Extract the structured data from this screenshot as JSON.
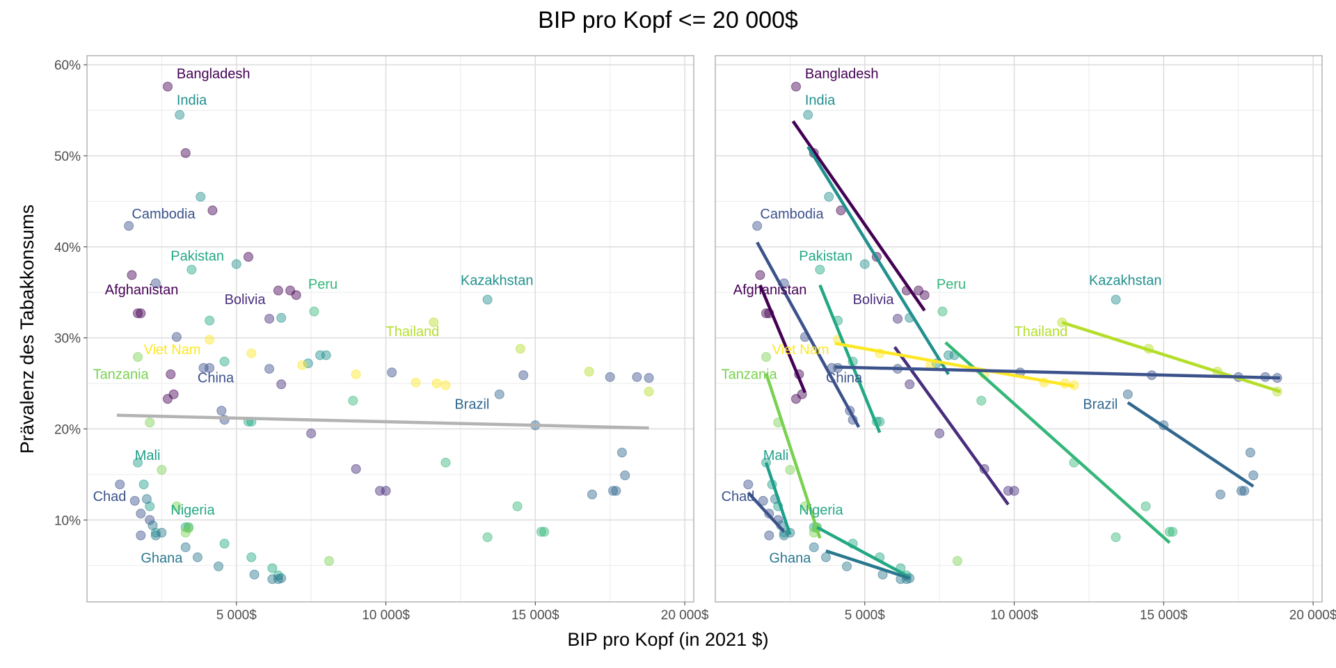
{
  "chart_data": {
    "type": "scatter",
    "title": "BIP pro Kopf <= 20 000$",
    "xlabel": "BIP pro Kopf (in 2021 $)",
    "ylabel": "Prävalenz des Tabakkonsums",
    "xlim": [
      0,
      20300
    ],
    "ylim": [
      1,
      61
    ],
    "x_ticks": [
      5000,
      10000,
      15000,
      20000
    ],
    "x_tick_labels": [
      "5 000$",
      "10 000$",
      "15 000$",
      "20 000$"
    ],
    "y_ticks": [
      10,
      20,
      30,
      40,
      50,
      60
    ],
    "y_tick_labels": [
      "10%",
      "20%",
      "30%",
      "40%",
      "50%",
      "60%"
    ],
    "grid": true,
    "panels": [
      "pooled",
      "by-country"
    ],
    "pooled_trend": {
      "x": [
        1000,
        18800
      ],
      "y": [
        21.5,
        20.1
      ],
      "color": "#b3b3b3"
    },
    "series": [
      {
        "name": "Bangladesh",
        "color": "#440154",
        "label_pos": [
          3000,
          58.5
        ],
        "x": [
          2700,
          3300,
          4200,
          5400,
          6400,
          6800,
          7000
        ],
        "y": [
          57.6,
          50.3,
          44.0,
          38.9,
          35.2,
          35.2,
          34.7
        ],
        "trend": {
          "x": [
            2600,
            7000
          ],
          "y": [
            53.8,
            33.0
          ]
        }
      },
      {
        "name": "India",
        "color": "#21908d",
        "label_pos": [
          3000,
          55.6
        ],
        "x": [
          3100,
          3800,
          5000,
          6500,
          7400,
          7800,
          8000
        ],
        "y": [
          54.5,
          45.5,
          38.1,
          32.2,
          27.2,
          28.1,
          28.1
        ],
        "trend": {
          "x": [
            3100,
            7800
          ],
          "y": [
            51.0,
            26.0
          ]
        }
      },
      {
        "name": "Cambodia",
        "color": "#3b528b",
        "label_pos": [
          1500,
          43.1
        ],
        "x": [
          1400,
          2300,
          3000,
          3900,
          4500,
          4600
        ],
        "y": [
          42.3,
          36.0,
          30.1,
          26.7,
          22.0,
          21.0
        ],
        "trend": {
          "x": [
            1400,
            4800
          ],
          "y": [
            40.5,
            20.2
          ]
        }
      },
      {
        "name": "Pakistan",
        "color": "#22a884",
        "label_pos": [
          2800,
          38.5
        ],
        "x": [
          3500,
          4100,
          4600,
          5400,
          5500
        ],
        "y": [
          37.5,
          31.9,
          27.4,
          20.8,
          20.8
        ],
        "trend": {
          "x": [
            3500,
            5500
          ],
          "y": [
            35.8,
            19.6
          ]
        }
      },
      {
        "name": "Afghanistan",
        "color": "#440154",
        "label_pos": [
          600,
          34.8
        ],
        "x": [
          1500,
          1700,
          1800,
          2800,
          2900,
          2700
        ],
        "y": [
          36.9,
          32.7,
          32.7,
          26.0,
          23.8,
          23.3
        ],
        "trend": {
          "x": [
            1500,
            3000
          ],
          "y": [
            35.8,
            24.0
          ]
        }
      },
      {
        "name": "Bolivia",
        "color": "#472d7b",
        "label_pos": [
          4600,
          33.7
        ],
        "x": [
          6100,
          6500,
          7500,
          9000,
          9800,
          10000
        ],
        "y": [
          32.1,
          24.9,
          19.5,
          15.6,
          13.2,
          13.2
        ],
        "trend": {
          "x": [
            6000,
            9800
          ],
          "y": [
            29.0,
            11.7
          ]
        }
      },
      {
        "name": "Peru",
        "color": "#35b779",
        "label_pos": [
          7400,
          35.4
        ],
        "x": [
          7600,
          8900,
          12000,
          13400,
          14400,
          15200,
          15300
        ],
        "y": [
          32.9,
          23.1,
          16.3,
          8.1,
          11.5,
          8.7,
          8.7
        ],
        "trend": {
          "x": [
            7700,
            15200
          ],
          "y": [
            29.5,
            7.5
          ]
        }
      },
      {
        "name": "Kazakhstan",
        "color": "#21908d",
        "label_pos": [
          12500,
          35.8
        ],
        "x": [
          13400
        ],
        "y": [
          34.2
        ]
      },
      {
        "name": "Thailand",
        "color": "#b5de2b",
        "label_pos": [
          10000,
          30.2
        ],
        "x": [
          11600,
          14500,
          16800,
          18800
        ],
        "y": [
          31.7,
          28.8,
          26.3,
          24.1
        ],
        "trend": {
          "x": [
            11600,
            18900
          ],
          "y": [
            31.7,
            24.1
          ]
        }
      },
      {
        "name": "Viet Nam",
        "color": "#fde725",
        "label_pos": [
          1900,
          28.2
        ],
        "x": [
          4100,
          5500,
          7200,
          9000,
          11000,
          11700,
          12000
        ],
        "y": [
          29.8,
          28.3,
          27.0,
          26.0,
          25.1,
          25.0,
          24.8
        ],
        "trend": {
          "x": [
            4000,
            12000
          ],
          "y": [
            29.4,
            24.7
          ]
        }
      },
      {
        "name": "Tanzania",
        "color": "#7ad151",
        "label_pos": [
          200,
          25.5
        ],
        "x": [
          1700,
          2100,
          2500
        ],
        "y": [
          27.9,
          20.7,
          15.5
        ],
        "trend": {
          "x": [
            1700,
            3500
          ],
          "y": [
            26.1,
            8.0
          ]
        }
      },
      {
        "name": "China",
        "color": "#3b528b",
        "label_pos": [
          3700,
          25.1
        ],
        "x": [
          4100,
          6100,
          10200,
          14600,
          17500,
          18400,
          18800
        ],
        "y": [
          26.7,
          26.6,
          26.2,
          25.9,
          25.7,
          25.7,
          25.6
        ],
        "trend": {
          "x": [
            4000,
            18900
          ],
          "y": [
            26.8,
            25.6
          ]
        }
      },
      {
        "name": "Brazil",
        "color": "#31688e",
        "label_pos": [
          12300,
          22.2
        ],
        "x": [
          13800,
          15000,
          16900,
          17600,
          17700,
          17900,
          18000
        ],
        "y": [
          23.8,
          20.4,
          12.8,
          13.2,
          13.2,
          17.4,
          14.9
        ],
        "trend": {
          "x": [
            13800,
            18000
          ],
          "y": [
            22.9,
            13.7
          ]
        }
      },
      {
        "name": "Mali",
        "color": "#1f9e89",
        "label_pos": [
          1600,
          16.6
        ],
        "x": [
          1700,
          1900,
          2100,
          2300
        ],
        "y": [
          16.3,
          13.9,
          11.5,
          8.6
        ],
        "trend": {
          "x": [
            1700,
            2500
          ],
          "y": [
            16.3,
            8.4
          ]
        }
      },
      {
        "name": "Chad",
        "color": "#3b528b",
        "label_pos": [
          200,
          12.1
        ],
        "x": [
          1100,
          1600,
          1800,
          2100,
          1800
        ],
        "y": [
          13.9,
          12.1,
          10.7,
          10.0,
          8.3
        ],
        "trend": {
          "x": [
            1100,
            2300
          ],
          "y": [
            13.0,
            8.7
          ]
        }
      },
      {
        "name": "Nigeria",
        "color": "#22a884",
        "label_pos": [
          2800,
          10.6
        ],
        "x": [
          3300,
          3400,
          4600,
          5500,
          6200,
          6400
        ],
        "y": [
          9.2,
          9.2,
          7.4,
          5.9,
          4.7,
          3.9
        ],
        "trend": {
          "x": [
            3400,
            6400
          ],
          "y": [
            9.2,
            3.9
          ]
        }
      },
      {
        "name": "Ghana",
        "color": "#2a788e",
        "label_pos": [
          1800,
          5.3
        ],
        "x": [
          3300,
          3700,
          4400,
          5600,
          6200,
          6400,
          6500
        ],
        "y": [
          7.0,
          5.9,
          4.9,
          4.0,
          3.5,
          3.5,
          3.6
        ],
        "trend": {
          "x": [
            3700,
            6500
          ],
          "y": [
            6.6,
            3.6
          ]
        }
      },
      {
        "name": "",
        "color": "#7ad151",
        "x": [
          3000,
          3300,
          3400,
          8100
        ],
        "y": [
          11.5,
          8.6,
          9.1,
          5.5
        ]
      },
      {
        "name": "",
        "color": "#2a788e",
        "x": [
          2300,
          2500,
          2000,
          2200
        ],
        "y": [
          8.3,
          8.6,
          12.3,
          9.4
        ]
      }
    ]
  }
}
